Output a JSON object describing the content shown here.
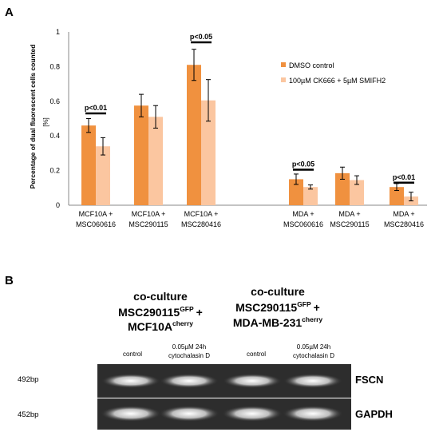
{
  "panel_a_label": "A",
  "panel_b_label": "B",
  "chart_data": {
    "type": "bar",
    "ylabel": "Percentage of dual fluorescent cells counted",
    "ylabel_unit": "[%]",
    "ylim": [
      0,
      1
    ],
    "yticks": [
      "0",
      "0.2",
      "0.4",
      "0.6",
      "0.8",
      "1"
    ],
    "grid": false,
    "legend_position": "right",
    "categories": [
      [
        "MCF10A +",
        "MSC060616"
      ],
      [
        "MCF10A +",
        "MSC290115"
      ],
      [
        "MCF10A +",
        "MSC280416"
      ],
      [
        "MDA +",
        "MSC060616"
      ],
      [
        "MDA +",
        "MSC290115"
      ],
      [
        "MDA +",
        "MSC280416"
      ]
    ],
    "series": [
      {
        "name": "DMSO control",
        "color": "#F0913F",
        "values": [
          0.46,
          0.575,
          0.81,
          0.15,
          0.185,
          0.105
        ],
        "errors": [
          0.04,
          0.065,
          0.09,
          0.03,
          0.035,
          0.02
        ]
      },
      {
        "name": "100µM CK666 + 5µM SMIFH2",
        "color": "#FBC6A0",
        "values": [
          0.34,
          0.51,
          0.605,
          0.105,
          0.145,
          0.05
        ],
        "errors": [
          0.05,
          0.065,
          0.12,
          0.012,
          0.025,
          0.025
        ]
      }
    ],
    "annotations": [
      {
        "category_index": 0,
        "text": "p<0.01",
        "y": 0.53
      },
      {
        "category_index": 2,
        "text": "p<0.05",
        "y": 0.94
      },
      {
        "category_index": 3,
        "text": "p<0.05",
        "y": 0.205
      },
      {
        "category_index": 5,
        "text": "p<0.01",
        "y": 0.13
      }
    ]
  },
  "gel": {
    "conditions": [
      {
        "heading": [
          "co-culture",
          "MSC290115",
          "+",
          "MCF10A"
        ],
        "sup1": "GFP",
        "sup2": "cherry"
      },
      {
        "heading": [
          "co-culture",
          "MSC290115",
          "+",
          "MDA-MB-231"
        ],
        "sup1": "GFP",
        "sup2": "cherry"
      }
    ],
    "lane_labels": [
      [
        "control"
      ],
      [
        "0.05µM 24h",
        "cytochalasin D"
      ],
      [
        "control"
      ],
      [
        "0.05µM 24h",
        "cytochalasin D"
      ]
    ],
    "rows": [
      {
        "size": "492bp",
        "gene": "FSCN"
      },
      {
        "size": "452bp",
        "gene": "GAPDH"
      }
    ]
  }
}
